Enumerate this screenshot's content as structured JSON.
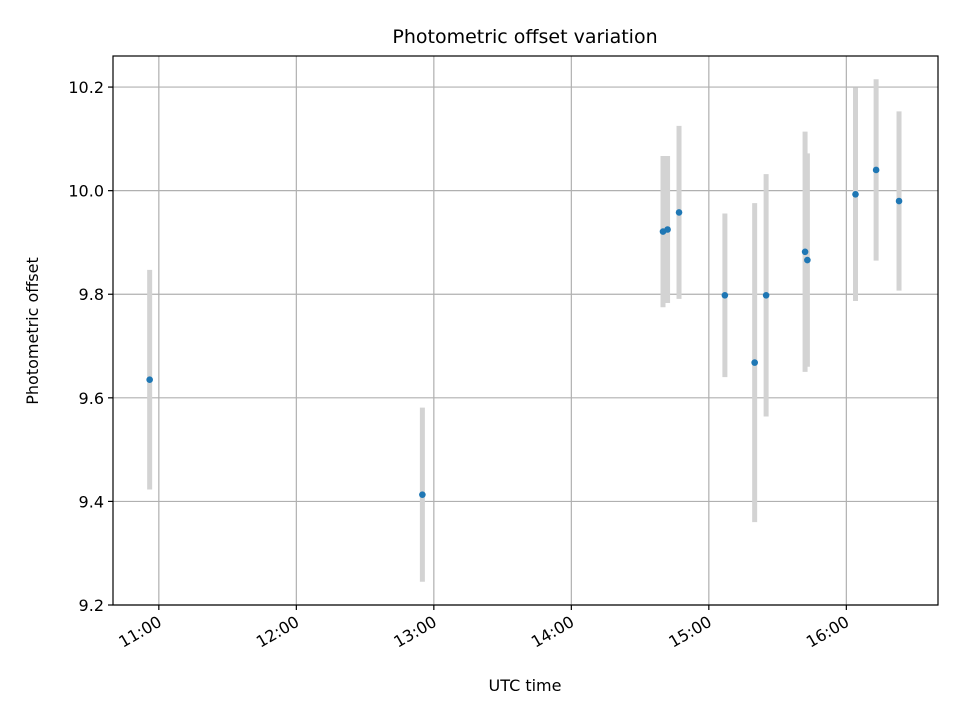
{
  "chart_data": {
    "type": "scatter",
    "title": "Photometric offset variation",
    "xlabel": "UTC time",
    "ylabel": "Photometric offset",
    "x_tick_labels": [
      "11:00",
      "12:00",
      "13:00",
      "14:00",
      "15:00",
      "16:00"
    ],
    "y_tick_labels": [
      "9.2",
      "9.4",
      "9.6",
      "9.8",
      "10.0",
      "10.2"
    ],
    "y_ticks": [
      9.2,
      9.4,
      9.6,
      9.8,
      10.0,
      10.2
    ],
    "xlim": [
      "10:40",
      "16:40"
    ],
    "ylim": [
      9.2,
      10.26
    ],
    "grid": true,
    "errorbar_color": "#d3d3d3",
    "marker_color": "#1f77b4",
    "points": [
      {
        "x": "10:56",
        "y": 9.635,
        "err": 0.212
      },
      {
        "x": "12:55",
        "y": 9.413,
        "err": 0.168
      },
      {
        "x": "14:40",
        "y": 9.921,
        "err": 0.146
      },
      {
        "x": "14:42",
        "y": 9.925,
        "err": 0.142
      },
      {
        "x": "14:47",
        "y": 9.958,
        "err": 0.167
      },
      {
        "x": "15:07",
        "y": 9.798,
        "err": 0.158
      },
      {
        "x": "15:20",
        "y": 9.668,
        "err": 0.308
      },
      {
        "x": "15:25",
        "y": 9.798,
        "err": 0.234
      },
      {
        "x": "15:42",
        "y": 9.882,
        "err": 0.232
      },
      {
        "x": "15:43",
        "y": 9.866,
        "err": 0.206
      },
      {
        "x": "16:04",
        "y": 9.993,
        "err": 0.206
      },
      {
        "x": "16:13",
        "y": 10.04,
        "err": 0.175
      },
      {
        "x": "16:23",
        "y": 9.98,
        "err": 0.173
      }
    ]
  }
}
